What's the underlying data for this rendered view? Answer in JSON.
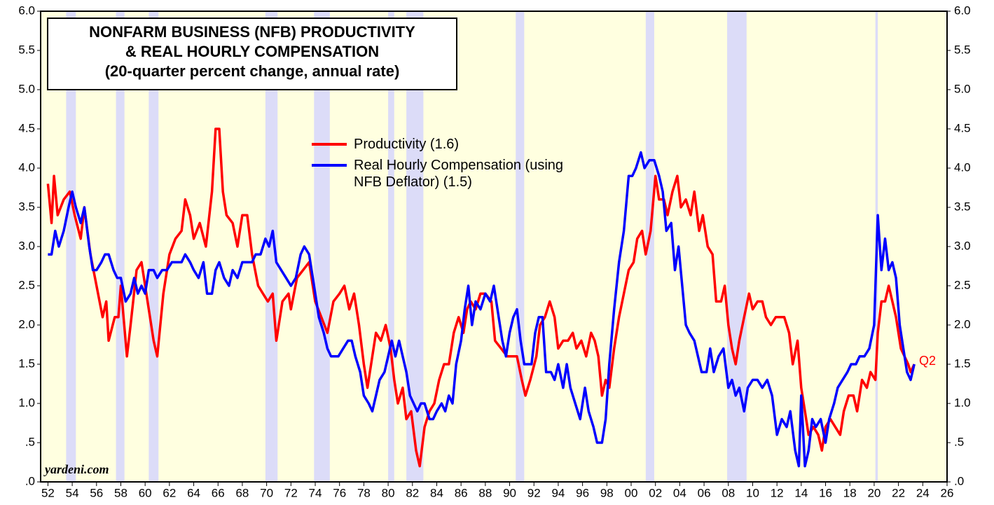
{
  "chart_data": {
    "type": "line",
    "title": [
      "NONFARM BUSINESS (NFB) PRODUCTIVITY",
      "& REAL HOURLY COMPENSATION",
      "(20-quarter percent change, annual rate)"
    ],
    "annotations": {
      "source": "yardeni.com",
      "last": "Q2"
    },
    "xlim": [
      1951.4,
      2026
    ],
    "ylim": [
      0,
      6
    ],
    "yticks": [
      {
        "value": 0,
        "label": ".0"
      },
      {
        "value": 0.5,
        "label": ".5"
      },
      {
        "value": 1,
        "label": "1.0"
      },
      {
        "value": 1.5,
        "label": "1.5"
      },
      {
        "value": 2,
        "label": "2.0"
      },
      {
        "value": 2.5,
        "label": "2.5"
      },
      {
        "value": 3,
        "label": "3.0"
      },
      {
        "value": 3.5,
        "label": "3.5"
      },
      {
        "value": 4,
        "label": "4.0"
      },
      {
        "value": 4.5,
        "label": "4.5"
      },
      {
        "value": 5,
        "label": "5.0"
      },
      {
        "value": 5.5,
        "label": "5.5"
      },
      {
        "value": 6,
        "label": "6.0"
      }
    ],
    "xticks": [
      {
        "value": 1952,
        "label": "52"
      },
      {
        "value": 1954,
        "label": "54"
      },
      {
        "value": 1956,
        "label": "56"
      },
      {
        "value": 1958,
        "label": "58"
      },
      {
        "value": 1960,
        "label": "60"
      },
      {
        "value": 1962,
        "label": "62"
      },
      {
        "value": 1964,
        "label": "64"
      },
      {
        "value": 1966,
        "label": "66"
      },
      {
        "value": 1968,
        "label": "68"
      },
      {
        "value": 1970,
        "label": "70"
      },
      {
        "value": 1972,
        "label": "72"
      },
      {
        "value": 1974,
        "label": "74"
      },
      {
        "value": 1976,
        "label": "76"
      },
      {
        "value": 1978,
        "label": "78"
      },
      {
        "value": 1980,
        "label": "80"
      },
      {
        "value": 1982,
        "label": "82"
      },
      {
        "value": 1984,
        "label": "84"
      },
      {
        "value": 1986,
        "label": "86"
      },
      {
        "value": 1988,
        "label": "88"
      },
      {
        "value": 1990,
        "label": "90"
      },
      {
        "value": 1992,
        "label": "92"
      },
      {
        "value": 1994,
        "label": "94"
      },
      {
        "value": 1996,
        "label": "96"
      },
      {
        "value": 1998,
        "label": "98"
      },
      {
        "value": 2000,
        "label": "00"
      },
      {
        "value": 2002,
        "label": "02"
      },
      {
        "value": 2004,
        "label": "04"
      },
      {
        "value": 2006,
        "label": "06"
      },
      {
        "value": 2008,
        "label": "08"
      },
      {
        "value": 2010,
        "label": "10"
      },
      {
        "value": 2012,
        "label": "12"
      },
      {
        "value": 2014,
        "label": "14"
      },
      {
        "value": 2016,
        "label": "16"
      },
      {
        "value": 2018,
        "label": "18"
      },
      {
        "value": 2020,
        "label": "20"
      },
      {
        "value": 2022,
        "label": "22"
      },
      {
        "value": 2024,
        "label": "24"
      },
      {
        "value": 2026,
        "label": "26"
      }
    ],
    "background": "#ffffe0",
    "recession_color": "#dcdcf8",
    "recessions": [
      [
        1953.5,
        1954.3
      ],
      [
        1957.6,
        1958.3
      ],
      [
        1960.3,
        1961.1
      ],
      [
        1969.9,
        1970.9
      ],
      [
        1973.9,
        1975.2
      ],
      [
        1980.0,
        1980.5
      ],
      [
        1981.5,
        1982.9
      ],
      [
        1990.5,
        1991.2
      ],
      [
        2001.2,
        2001.9
      ],
      [
        2007.9,
        2009.5
      ],
      [
        2020.1,
        2020.3
      ]
    ],
    "series": [
      {
        "name": "Productivity (1.6)",
        "color": "#ff0000",
        "x": [
          1952.0,
          1952.3,
          1952.5,
          1952.8,
          1953.3,
          1953.8,
          1954.2,
          1954.7,
          1955.0,
          1955.5,
          1956.0,
          1956.5,
          1956.8,
          1957.0,
          1957.5,
          1957.8,
          1958.0,
          1958.5,
          1958.8,
          1959.3,
          1959.7,
          1960.0,
          1960.3,
          1960.7,
          1961.0,
          1961.5,
          1962.0,
          1962.5,
          1963.0,
          1963.3,
          1963.7,
          1964.0,
          1964.5,
          1965.0,
          1965.5,
          1965.8,
          1966.1,
          1966.4,
          1966.7,
          1967.2,
          1967.6,
          1968.0,
          1968.4,
          1968.8,
          1969.3,
          1969.7,
          1970.1,
          1970.5,
          1970.8,
          1971.3,
          1971.8,
          1972.0,
          1972.5,
          1973.0,
          1973.5,
          1974.0,
          1974.5,
          1975.0,
          1975.5,
          1976.0,
          1976.4,
          1976.8,
          1977.2,
          1977.6,
          1978.0,
          1978.3,
          1978.7,
          1979.0,
          1979.4,
          1979.8,
          1980.2,
          1980.5,
          1980.8,
          1981.2,
          1981.5,
          1981.9,
          1982.3,
          1982.6,
          1983.0,
          1983.4,
          1983.8,
          1984.2,
          1984.6,
          1985.0,
          1985.4,
          1985.8,
          1986.2,
          1986.5,
          1986.8,
          1987.2,
          1987.6,
          1988.0,
          1988.5,
          1988.8,
          1989.3,
          1989.8,
          1990.2,
          1990.6,
          1991.0,
          1991.3,
          1991.7,
          1992.2,
          1992.5,
          1992.9,
          1993.3,
          1993.7,
          1994.0,
          1994.4,
          1994.8,
          1995.2,
          1995.5,
          1995.9,
          1996.3,
          1996.7,
          1997.0,
          1997.3,
          1997.6,
          1997.9,
          1998.2,
          1998.6,
          1999.0,
          1999.4,
          1999.8,
          2000.2,
          2000.5,
          2000.9,
          2001.2,
          2001.6,
          2002.0,
          2002.3,
          2002.7,
          2003.0,
          2003.4,
          2003.8,
          2004.1,
          2004.5,
          2004.9,
          2005.2,
          2005.6,
          2005.9,
          2006.3,
          2006.7,
          2007.0,
          2007.4,
          2007.7,
          2008.0,
          2008.3,
          2008.6,
          2008.9,
          2009.3,
          2009.7,
          2010.0,
          2010.4,
          2010.8,
          2011.1,
          2011.5,
          2011.9,
          2012.3,
          2012.6,
          2013.0,
          2013.3,
          2013.7,
          2014.0,
          2014.3,
          2014.6,
          2015.0,
          2015.4,
          2015.7,
          2016.0,
          2016.4,
          2016.8,
          2017.2,
          2017.5,
          2017.9,
          2018.3,
          2018.6,
          2019.0,
          2019.4,
          2019.7,
          2020.1,
          2020.3,
          2020.6,
          2020.9,
          2021.2,
          2021.5,
          2021.8,
          2022.2,
          2022.5,
          2022.8,
          2023.0,
          2023.3
        ],
        "values": [
          3.8,
          3.3,
          3.9,
          3.4,
          3.6,
          3.7,
          3.4,
          3.1,
          3.5,
          2.9,
          2.5,
          2.1,
          2.3,
          1.8,
          2.1,
          2.1,
          2.5,
          1.6,
          2.0,
          2.7,
          2.8,
          2.5,
          2.2,
          1.8,
          1.6,
          2.4,
          2.9,
          3.1,
          3.2,
          3.6,
          3.4,
          3.1,
          3.3,
          3.0,
          3.7,
          4.5,
          4.5,
          3.7,
          3.4,
          3.3,
          3.0,
          3.4,
          3.4,
          2.9,
          2.5,
          2.4,
          2.3,
          2.4,
          1.8,
          2.3,
          2.4,
          2.2,
          2.6,
          2.7,
          2.8,
          2.3,
          2.1,
          1.9,
          2.3,
          2.4,
          2.5,
          2.2,
          2.4,
          2.0,
          1.5,
          1.2,
          1.6,
          1.9,
          1.8,
          2.0,
          1.7,
          1.3,
          1.0,
          1.2,
          0.8,
          0.9,
          0.4,
          0.2,
          0.7,
          0.9,
          1.0,
          1.3,
          1.5,
          1.5,
          1.9,
          2.1,
          1.9,
          2.2,
          2.3,
          2.2,
          2.4,
          2.4,
          2.3,
          1.8,
          1.7,
          1.6,
          1.6,
          1.6,
          1.3,
          1.1,
          1.3,
          1.6,
          2.0,
          2.1,
          2.3,
          2.1,
          1.7,
          1.8,
          1.8,
          1.9,
          1.7,
          1.8,
          1.6,
          1.9,
          1.8,
          1.6,
          1.1,
          1.3,
          1.2,
          1.7,
          2.1,
          2.4,
          2.7,
          2.8,
          3.1,
          3.2,
          2.9,
          3.2,
          3.9,
          3.6,
          3.6,
          3.4,
          3.7,
          3.9,
          3.5,
          3.6,
          3.4,
          3.7,
          3.2,
          3.4,
          3.0,
          2.9,
          2.3,
          2.3,
          2.5,
          2.0,
          1.7,
          1.5,
          1.8,
          2.1,
          2.4,
          2.2,
          2.3,
          2.3,
          2.1,
          2.0,
          2.1,
          2.1,
          2.1,
          1.9,
          1.5,
          1.8,
          1.2,
          0.9,
          0.6,
          0.7,
          0.6,
          0.4,
          0.7,
          0.8,
          0.7,
          0.6,
          0.9,
          1.1,
          1.1,
          0.9,
          1.3,
          1.2,
          1.4,
          1.3,
          1.9,
          2.3,
          2.3,
          2.5,
          2.3,
          2.1,
          1.7,
          1.6,
          1.5,
          1.4,
          1.5
        ]
      },
      {
        "name": "Real Hourly Compensation (using NFB Deflator) (1.5)",
        "color": "#0000ff",
        "x": [
          1952.0,
          1952.3,
          1952.6,
          1952.9,
          1953.3,
          1953.7,
          1954.0,
          1954.3,
          1954.7,
          1955.0,
          1955.4,
          1955.7,
          1956.0,
          1956.4,
          1956.7,
          1957.0,
          1957.4,
          1957.7,
          1958.0,
          1958.4,
          1958.8,
          1959.1,
          1959.4,
          1959.7,
          1960.0,
          1960.3,
          1960.7,
          1961.0,
          1961.4,
          1961.8,
          1962.2,
          1962.6,
          1963.0,
          1963.3,
          1963.7,
          1964.0,
          1964.4,
          1964.8,
          1965.1,
          1965.5,
          1965.8,
          1966.1,
          1966.5,
          1966.9,
          1967.2,
          1967.6,
          1968.0,
          1968.4,
          1968.8,
          1969.1,
          1969.5,
          1969.9,
          1970.2,
          1970.5,
          1970.8,
          1971.2,
          1971.6,
          1972.0,
          1972.4,
          1972.8,
          1973.1,
          1973.5,
          1973.9,
          1974.3,
          1974.7,
          1975.0,
          1975.3,
          1975.6,
          1975.9,
          1976.3,
          1976.7,
          1977.0,
          1977.3,
          1977.7,
          1978.0,
          1978.4,
          1978.7,
          1979.0,
          1979.3,
          1979.7,
          1980.0,
          1980.3,
          1980.6,
          1980.9,
          1981.2,
          1981.5,
          1981.8,
          1982.1,
          1982.4,
          1982.7,
          1983.0,
          1983.4,
          1983.7,
          1984.0,
          1984.4,
          1984.7,
          1985.0,
          1985.3,
          1985.6,
          1986.0,
          1986.3,
          1986.6,
          1986.9,
          1987.2,
          1987.6,
          1988.0,
          1988.4,
          1988.7,
          1989.0,
          1989.4,
          1989.7,
          1990.0,
          1990.3,
          1990.6,
          1990.9,
          1991.2,
          1991.5,
          1991.8,
          1992.1,
          1992.4,
          1992.7,
          1993.0,
          1993.4,
          1993.7,
          1994.0,
          1994.4,
          1994.7,
          1995.0,
          1995.4,
          1995.8,
          1996.2,
          1996.5,
          1996.9,
          1997.2,
          1997.6,
          1997.9,
          1998.2,
          1998.6,
          1999.0,
          1999.4,
          1999.8,
          2000.1,
          2000.4,
          2000.8,
          2001.1,
          2001.5,
          2001.9,
          2002.3,
          2002.6,
          2002.9,
          2003.3,
          2003.6,
          2003.9,
          2004.2,
          2004.5,
          2004.8,
          2005.2,
          2005.5,
          2005.8,
          2006.2,
          2006.5,
          2006.8,
          2007.2,
          2007.6,
          2008.0,
          2008.3,
          2008.6,
          2008.9,
          2009.3,
          2009.6,
          2010.0,
          2010.4,
          2010.8,
          2011.2,
          2011.6,
          2012.0,
          2012.4,
          2012.8,
          2013.1,
          2013.5,
          2013.8,
          2014.0,
          2014.3,
          2014.6,
          2014.9,
          2015.2,
          2015.6,
          2016.0,
          2016.3,
          2016.7,
          2017.0,
          2017.4,
          2017.8,
          2018.1,
          2018.5,
          2018.8,
          2019.2,
          2019.6,
          2020.0,
          2020.3,
          2020.6,
          2020.9,
          2021.2,
          2021.5,
          2021.8,
          2022.1,
          2022.4,
          2022.7,
          2023.0,
          2023.3
        ],
        "values": [
          2.9,
          2.9,
          3.2,
          3.0,
          3.2,
          3.5,
          3.7,
          3.5,
          3.3,
          3.5,
          3.0,
          2.7,
          2.7,
          2.8,
          2.9,
          2.9,
          2.7,
          2.6,
          2.6,
          2.3,
          2.4,
          2.6,
          2.4,
          2.5,
          2.4,
          2.7,
          2.7,
          2.6,
          2.7,
          2.7,
          2.8,
          2.8,
          2.8,
          2.9,
          2.8,
          2.7,
          2.6,
          2.8,
          2.4,
          2.4,
          2.7,
          2.8,
          2.6,
          2.5,
          2.7,
          2.6,
          2.8,
          2.8,
          2.8,
          2.9,
          2.9,
          3.1,
          3.0,
          3.2,
          2.8,
          2.7,
          2.6,
          2.5,
          2.6,
          2.9,
          3.0,
          2.9,
          2.5,
          2.1,
          1.9,
          1.7,
          1.6,
          1.6,
          1.6,
          1.7,
          1.8,
          1.8,
          1.6,
          1.4,
          1.1,
          1.0,
          0.9,
          1.1,
          1.3,
          1.4,
          1.6,
          1.8,
          1.6,
          1.8,
          1.6,
          1.4,
          1.1,
          1.0,
          0.9,
          1.0,
          1.0,
          0.8,
          0.8,
          0.9,
          1.0,
          0.9,
          1.1,
          1.0,
          1.5,
          1.8,
          2.2,
          2.5,
          2.0,
          2.3,
          2.2,
          2.4,
          2.3,
          2.5,
          2.2,
          1.8,
          1.6,
          1.9,
          2.1,
          2.2,
          1.8,
          1.5,
          1.5,
          1.5,
          1.9,
          2.1,
          2.1,
          1.4,
          1.4,
          1.3,
          1.5,
          1.2,
          1.5,
          1.2,
          1.0,
          0.8,
          1.2,
          0.9,
          0.7,
          0.5,
          0.5,
          0.8,
          1.5,
          2.2,
          2.8,
          3.2,
          3.9,
          3.9,
          4.0,
          4.2,
          4.0,
          4.1,
          4.1,
          3.9,
          3.7,
          3.2,
          3.3,
          2.7,
          3.0,
          2.5,
          2.0,
          1.9,
          1.8,
          1.6,
          1.4,
          1.4,
          1.7,
          1.4,
          1.6,
          1.7,
          1.2,
          1.3,
          1.1,
          1.2,
          0.9,
          1.2,
          1.3,
          1.3,
          1.2,
          1.3,
          1.1,
          0.6,
          0.8,
          0.7,
          0.9,
          0.4,
          0.2,
          1.1,
          0.2,
          0.4,
          0.8,
          0.7,
          0.8,
          0.5,
          0.8,
          1.0,
          1.2,
          1.3,
          1.4,
          1.5,
          1.5,
          1.6,
          1.6,
          1.7,
          2.0,
          3.4,
          2.7,
          3.1,
          2.7,
          2.8,
          2.6,
          2.0,
          1.7,
          1.4,
          1.3,
          1.5
        ]
      }
    ]
  }
}
